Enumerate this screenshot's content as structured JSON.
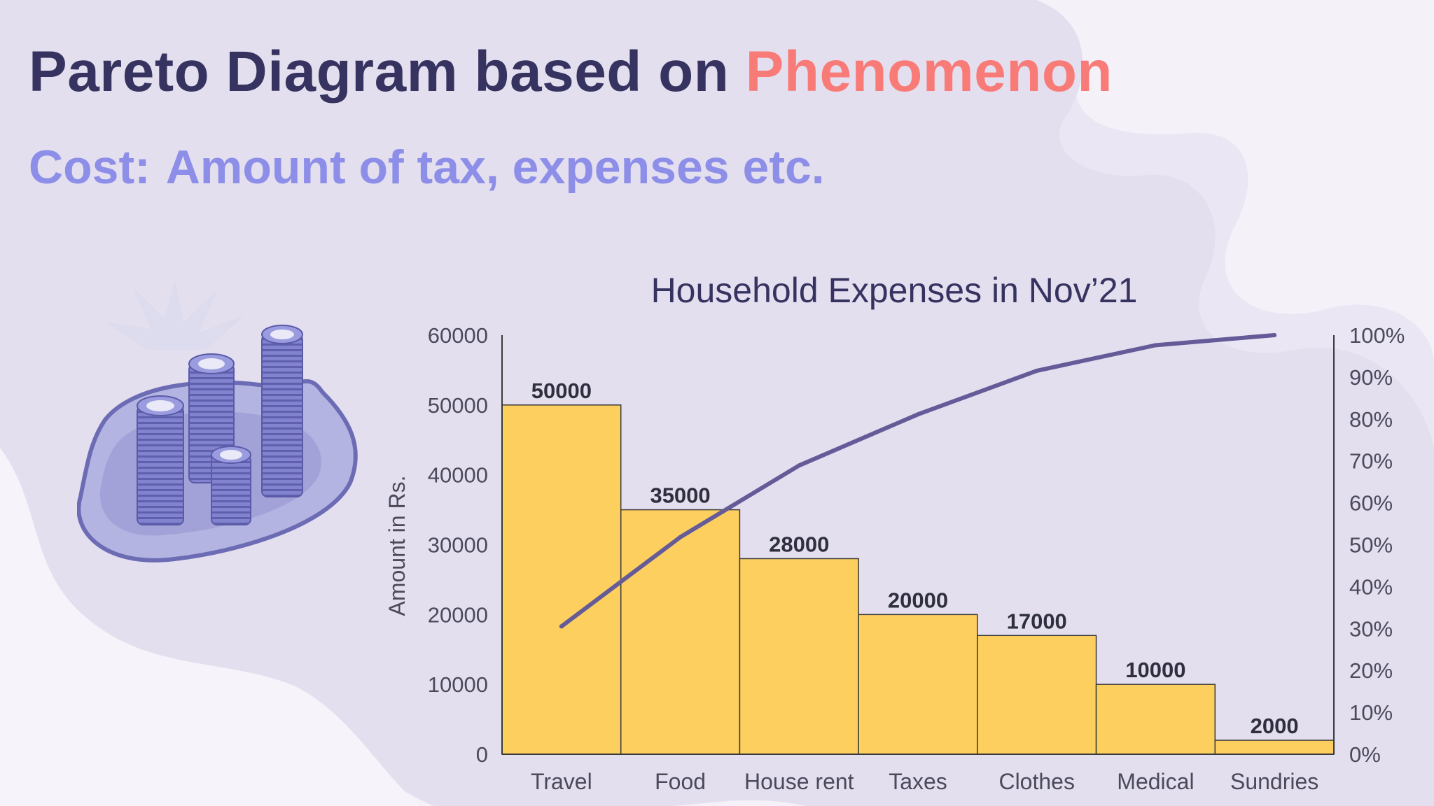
{
  "slide": {
    "title_main": "Pareto Diagram based on",
    "title_highlight": "Phenomenon",
    "subtitle_label": "Cost:",
    "subtitle_text": "Amount of tax, expenses etc."
  },
  "illustration": {
    "icon": "coin-stacks-icon"
  },
  "colors": {
    "title": "#363360",
    "highlight": "#f87b78",
    "subtitle": "#8d8ee8",
    "bar": "#fdcf5f",
    "bar_stroke": "#3a3a3a",
    "line": "#645b98",
    "axis_text": "#4a4a5c"
  },
  "chart_data": {
    "type": "bar",
    "title": "Household Expenses in Nov’21",
    "ylabel": "Amount in Rs.",
    "categories": [
      "Travel",
      "Food",
      "House rent",
      "Taxes",
      "Clothes",
      "Medical",
      "Sundries"
    ],
    "values": [
      50000,
      35000,
      28000,
      20000,
      17000,
      10000,
      2000
    ],
    "data_labels": [
      "50000",
      "35000",
      "28000",
      "20000",
      "17000",
      "10000",
      "2000"
    ],
    "ylim": [
      0,
      60000
    ],
    "yticks": [
      0,
      10000,
      20000,
      30000,
      40000,
      50000,
      60000
    ],
    "ytick_labels": [
      "0",
      "10000",
      "20000",
      "30000",
      "40000",
      "50000",
      "60000"
    ],
    "cumulative_percent": [
      30.5,
      51.8,
      68.9,
      81.1,
      91.5,
      97.6,
      100
    ],
    "y2lim": [
      0,
      100
    ],
    "y2ticks": [
      0,
      10,
      20,
      30,
      40,
      50,
      60,
      70,
      80,
      90,
      100
    ],
    "y2tick_labels": [
      "0%",
      "10%",
      "20%",
      "30%",
      "40%",
      "50%",
      "60%",
      "70%",
      "80%",
      "90%",
      "100%"
    ],
    "grid": false,
    "legend": "none"
  }
}
